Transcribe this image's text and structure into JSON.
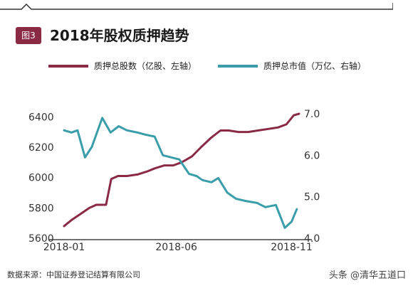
{
  "badge": "图3",
  "title": "2018年股权质押趋势",
  "legend": [
    {
      "label": "质押总股数（亿股、左轴）",
      "color": "#8a2a45"
    },
    {
      "label": "质押总市值（万亿、右轴）",
      "color": "#3a9eaa"
    }
  ],
  "source": "数据来源：中国证券登记结算有限公司",
  "watermark": "头条 @清华五道口",
  "chart_data": {
    "type": "line",
    "x_ticks": [
      "2018-01",
      "2018-06",
      "2018-11"
    ],
    "left_axis": {
      "ticks": [
        6400,
        6200,
        6000,
        5800,
        5600
      ],
      "ylim": [
        5600,
        6420
      ]
    },
    "right_axis": {
      "ticks": [
        "7.0",
        "6.0",
        "5.0",
        "4.0"
      ],
      "ylim": [
        4.0,
        7.0
      ]
    },
    "series": [
      {
        "name": "质押总股数（亿股、左轴）",
        "axis": "left",
        "color": "#8a2a45",
        "x": [
          "2018-01-02",
          "2018-01-12",
          "2018-01-24",
          "2018-02-05",
          "2018-02-14",
          "2018-02-27",
          "2018-03-06",
          "2018-03-15",
          "2018-03-27",
          "2018-04-10",
          "2018-04-23",
          "2018-05-03",
          "2018-05-16",
          "2018-05-28",
          "2018-06-08",
          "2018-06-22",
          "2018-07-04",
          "2018-07-17",
          "2018-07-30",
          "2018-08-10",
          "2018-08-23",
          "2018-09-05",
          "2018-09-18",
          "2018-10-02",
          "2018-10-15",
          "2018-10-26",
          "2018-11-05",
          "2018-11-12"
        ],
        "values": [
          5680,
          5720,
          5760,
          5800,
          5820,
          5820,
          5990,
          6010,
          6010,
          6020,
          6040,
          6060,
          6080,
          6080,
          6100,
          6140,
          6200,
          6260,
          6310,
          6310,
          6300,
          6300,
          6310,
          6320,
          6330,
          6350,
          6410,
          6420
        ]
      },
      {
        "name": "质押总市值（万亿、右轴）",
        "axis": "right",
        "color": "#3a9eaa",
        "x": [
          "2018-01-02",
          "2018-01-12",
          "2018-01-20",
          "2018-01-30",
          "2018-02-08",
          "2018-02-22",
          "2018-03-05",
          "2018-03-16",
          "2018-03-27",
          "2018-04-10",
          "2018-04-20",
          "2018-05-03",
          "2018-05-14",
          "2018-05-25",
          "2018-06-05",
          "2018-06-18",
          "2018-06-28",
          "2018-07-06",
          "2018-07-18",
          "2018-07-27",
          "2018-08-08",
          "2018-08-20",
          "2018-09-01",
          "2018-09-17",
          "2018-09-28",
          "2018-10-12",
          "2018-10-24",
          "2018-11-02",
          "2018-11-09"
        ],
        "values": [
          6.6,
          6.55,
          6.6,
          5.95,
          6.2,
          6.9,
          6.55,
          6.7,
          6.6,
          6.55,
          6.5,
          6.45,
          6.0,
          5.95,
          5.9,
          5.55,
          5.5,
          5.4,
          5.35,
          5.45,
          5.1,
          4.95,
          4.9,
          4.85,
          4.75,
          4.8,
          4.25,
          4.4,
          4.7
        ]
      }
    ]
  }
}
